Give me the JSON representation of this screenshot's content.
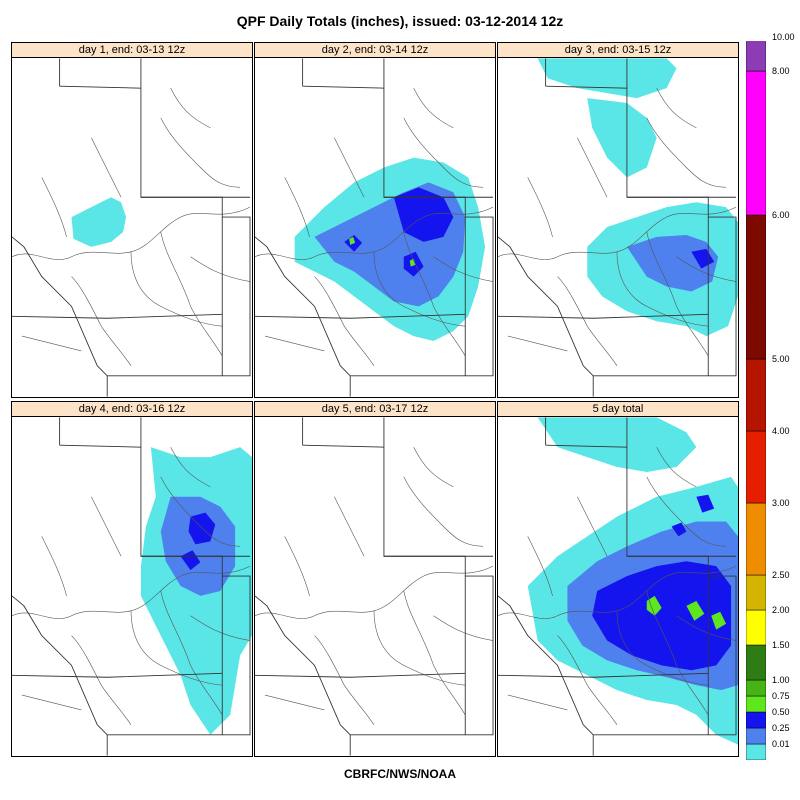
{
  "title": "QPF Daily Totals (inches),  issued: 03-12-2014 12z",
  "footer": "CBRFC/NWS/NOAA",
  "panels": [
    {
      "id": "day1",
      "label": "day 1, end: 03-13 12z"
    },
    {
      "id": "day2",
      "label": "day 2, end: 03-14 12z"
    },
    {
      "id": "day3",
      "label": "day 3, end: 03-15 12z"
    },
    {
      "id": "day4",
      "label": "day 4, end: 03-16 12z"
    },
    {
      "id": "day5",
      "label": "day 5, end: 03-17 12z"
    },
    {
      "id": "total",
      "label": "5 day total"
    }
  ],
  "colors": {
    "panel_header_bg": "#fde3c8",
    "state_borders": "#333333",
    "rivers": "#555555"
  },
  "legend": {
    "units": "inches",
    "levels": [
      {
        "label": "0.01",
        "color": "#5ae6e6"
      },
      {
        "label": "0.25",
        "color": "#4f81ee"
      },
      {
        "label": "0.50",
        "color": "#1414ee"
      },
      {
        "label": "0.75",
        "color": "#5ee61e"
      },
      {
        "label": "1.00",
        "color": "#46b414"
      },
      {
        "label": "1.50",
        "color": "#2e7d14"
      },
      {
        "label": "2.00",
        "color": "#ffff00"
      },
      {
        "label": "2.50",
        "color": "#d4b400"
      },
      {
        "label": "3.00",
        "color": "#f08c00"
      },
      {
        "label": "4.00",
        "color": "#e61e00"
      },
      {
        "label": "5.00",
        "color": "#b41400"
      },
      {
        "label": "6.00",
        "color": "#7d0a00"
      },
      {
        "label": "8.00",
        "color": "#ff00ff"
      },
      {
        "label": "10.00",
        "color": "#8c3cb4"
      }
    ]
  }
}
